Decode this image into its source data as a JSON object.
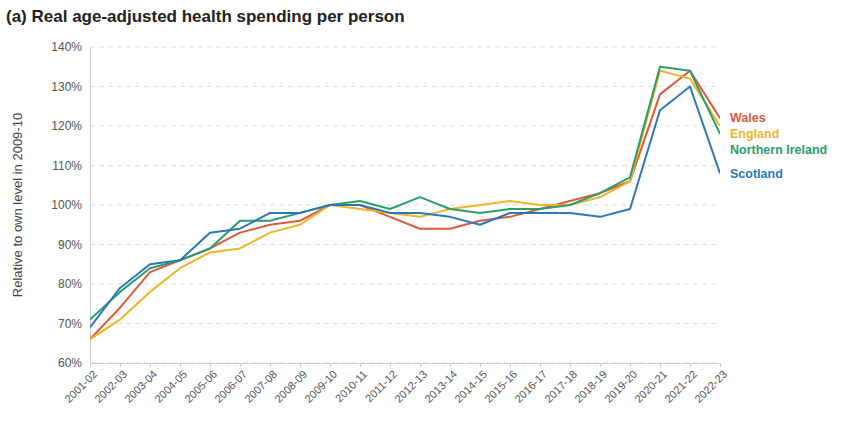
{
  "chart_data": {
    "type": "line",
    "title": "(a) Real age-adjusted health spending per person",
    "y_label": "Relative to own level in 2009-10",
    "categories": [
      "2001-02",
      "2002-03",
      "2003-04",
      "2004-05",
      "2005-06",
      "2006-07",
      "2007-08",
      "2008-09",
      "2009-10",
      "2010-11",
      "2011-12",
      "2012-13",
      "2013-14",
      "2014-15",
      "2015-16",
      "2016-17",
      "2017-18",
      "2018-19",
      "2019-20",
      "2020-21",
      "2021-22",
      "2022-23"
    ],
    "series": [
      {
        "name": "Wales",
        "color": "#dd5a3c",
        "values": [
          66,
          74,
          83,
          86,
          89,
          93,
          95,
          96,
          100,
          100,
          97,
          94,
          94,
          96,
          97,
          99,
          101,
          103,
          106,
          128,
          134,
          122
        ]
      },
      {
        "name": "England",
        "color": "#f0b429",
        "values": [
          66,
          71,
          78,
          84,
          88,
          89,
          93,
          95,
          100,
          99,
          98,
          97,
          99,
          100,
          101,
          100,
          100,
          102,
          106,
          134,
          132,
          120
        ]
      },
      {
        "name": "Northern Ireland",
        "color": "#2a9d6a",
        "values": [
          71,
          78,
          84,
          86,
          89,
          96,
          96,
          98,
          100,
          101,
          99,
          102,
          99,
          98,
          99,
          99,
          100,
          103,
          107,
          135,
          134,
          118
        ]
      },
      {
        "name": "Scotland",
        "color": "#2b78b8",
        "values": [
          69,
          79,
          85,
          86,
          93,
          94,
          98,
          98,
          100,
          100,
          98,
          98,
          97,
          95,
          98,
          98,
          98,
          97,
          99,
          124,
          130,
          108
        ]
      }
    ],
    "ylim": [
      60,
      140
    ],
    "yticks": [
      {
        "value": 60,
        "label": "60%"
      },
      {
        "value": 70,
        "label": "70%"
      },
      {
        "value": 80,
        "label": "80%"
      },
      {
        "value": 90,
        "label": "90%"
      },
      {
        "value": 100,
        "label": "100%"
      },
      {
        "value": 110,
        "label": "110%"
      },
      {
        "value": 120,
        "label": "120%"
      },
      {
        "value": 130,
        "label": "130%"
      },
      {
        "value": 140,
        "label": "140%"
      }
    ],
    "grid": true,
    "legend": "right"
  }
}
